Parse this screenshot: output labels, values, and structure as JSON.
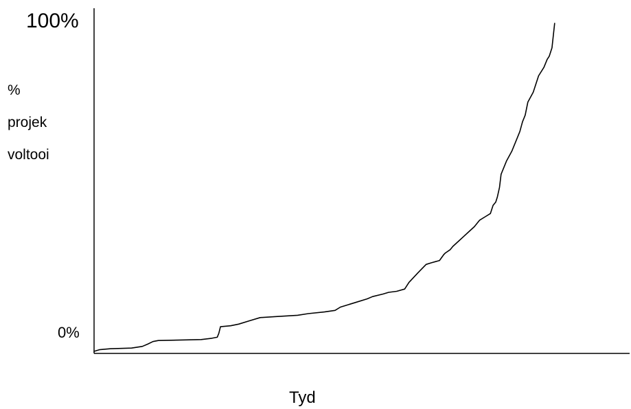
{
  "chart_data": {
    "type": "line",
    "title": "",
    "xlabel": "Tyd",
    "ylabel_lines": [
      "%",
      "projek",
      "voltooi"
    ],
    "y_tick_labels": {
      "top": "100%",
      "bottom": "0%"
    },
    "ylim": [
      0,
      100
    ],
    "xlim": [
      0,
      100
    ],
    "grid": false,
    "legend": "none",
    "line_color": "#000000",
    "series": [
      {
        "x": [
          0,
          1,
          3,
          7,
          9,
          10,
          11,
          12,
          20,
          22,
          23,
          23.3,
          23.6,
          25.5,
          27,
          29,
          31,
          34,
          38,
          40,
          43,
          45,
          46,
          47,
          49,
          51,
          52,
          54,
          55,
          56.5,
          58,
          58.8,
          60.5,
          62,
          63,
          64.5,
          65.3,
          65.6,
          66.5,
          67,
          68,
          69,
          70,
          71,
          72,
          73,
          74,
          74.5,
          75,
          75.3,
          75.7,
          76,
          77,
          78,
          79,
          79.5,
          80,
          80.5,
          81,
          82,
          83,
          84,
          84.6,
          85,
          85.3,
          85.5,
          86
        ],
        "y": [
          0,
          0.5,
          0.8,
          1,
          1.5,
          2.2,
          3,
          3.3,
          3.6,
          4,
          4.3,
          5.5,
          7.5,
          7.8,
          8.3,
          9.3,
          10.3,
          10.6,
          11,
          11.5,
          12,
          12.5,
          13.5,
          14,
          15,
          16,
          16.7,
          17.5,
          18,
          18.3,
          19,
          21,
          24,
          26.5,
          27,
          27.7,
          29.5,
          30,
          31,
          32,
          33.5,
          35,
          36.5,
          38,
          40,
          41,
          42,
          44.5,
          45.5,
          47,
          50,
          54,
          58,
          61,
          65,
          67,
          70,
          72,
          76,
          79,
          84,
          86.6,
          89,
          90,
          91.5,
          92.5,
          100
        ]
      }
    ]
  }
}
